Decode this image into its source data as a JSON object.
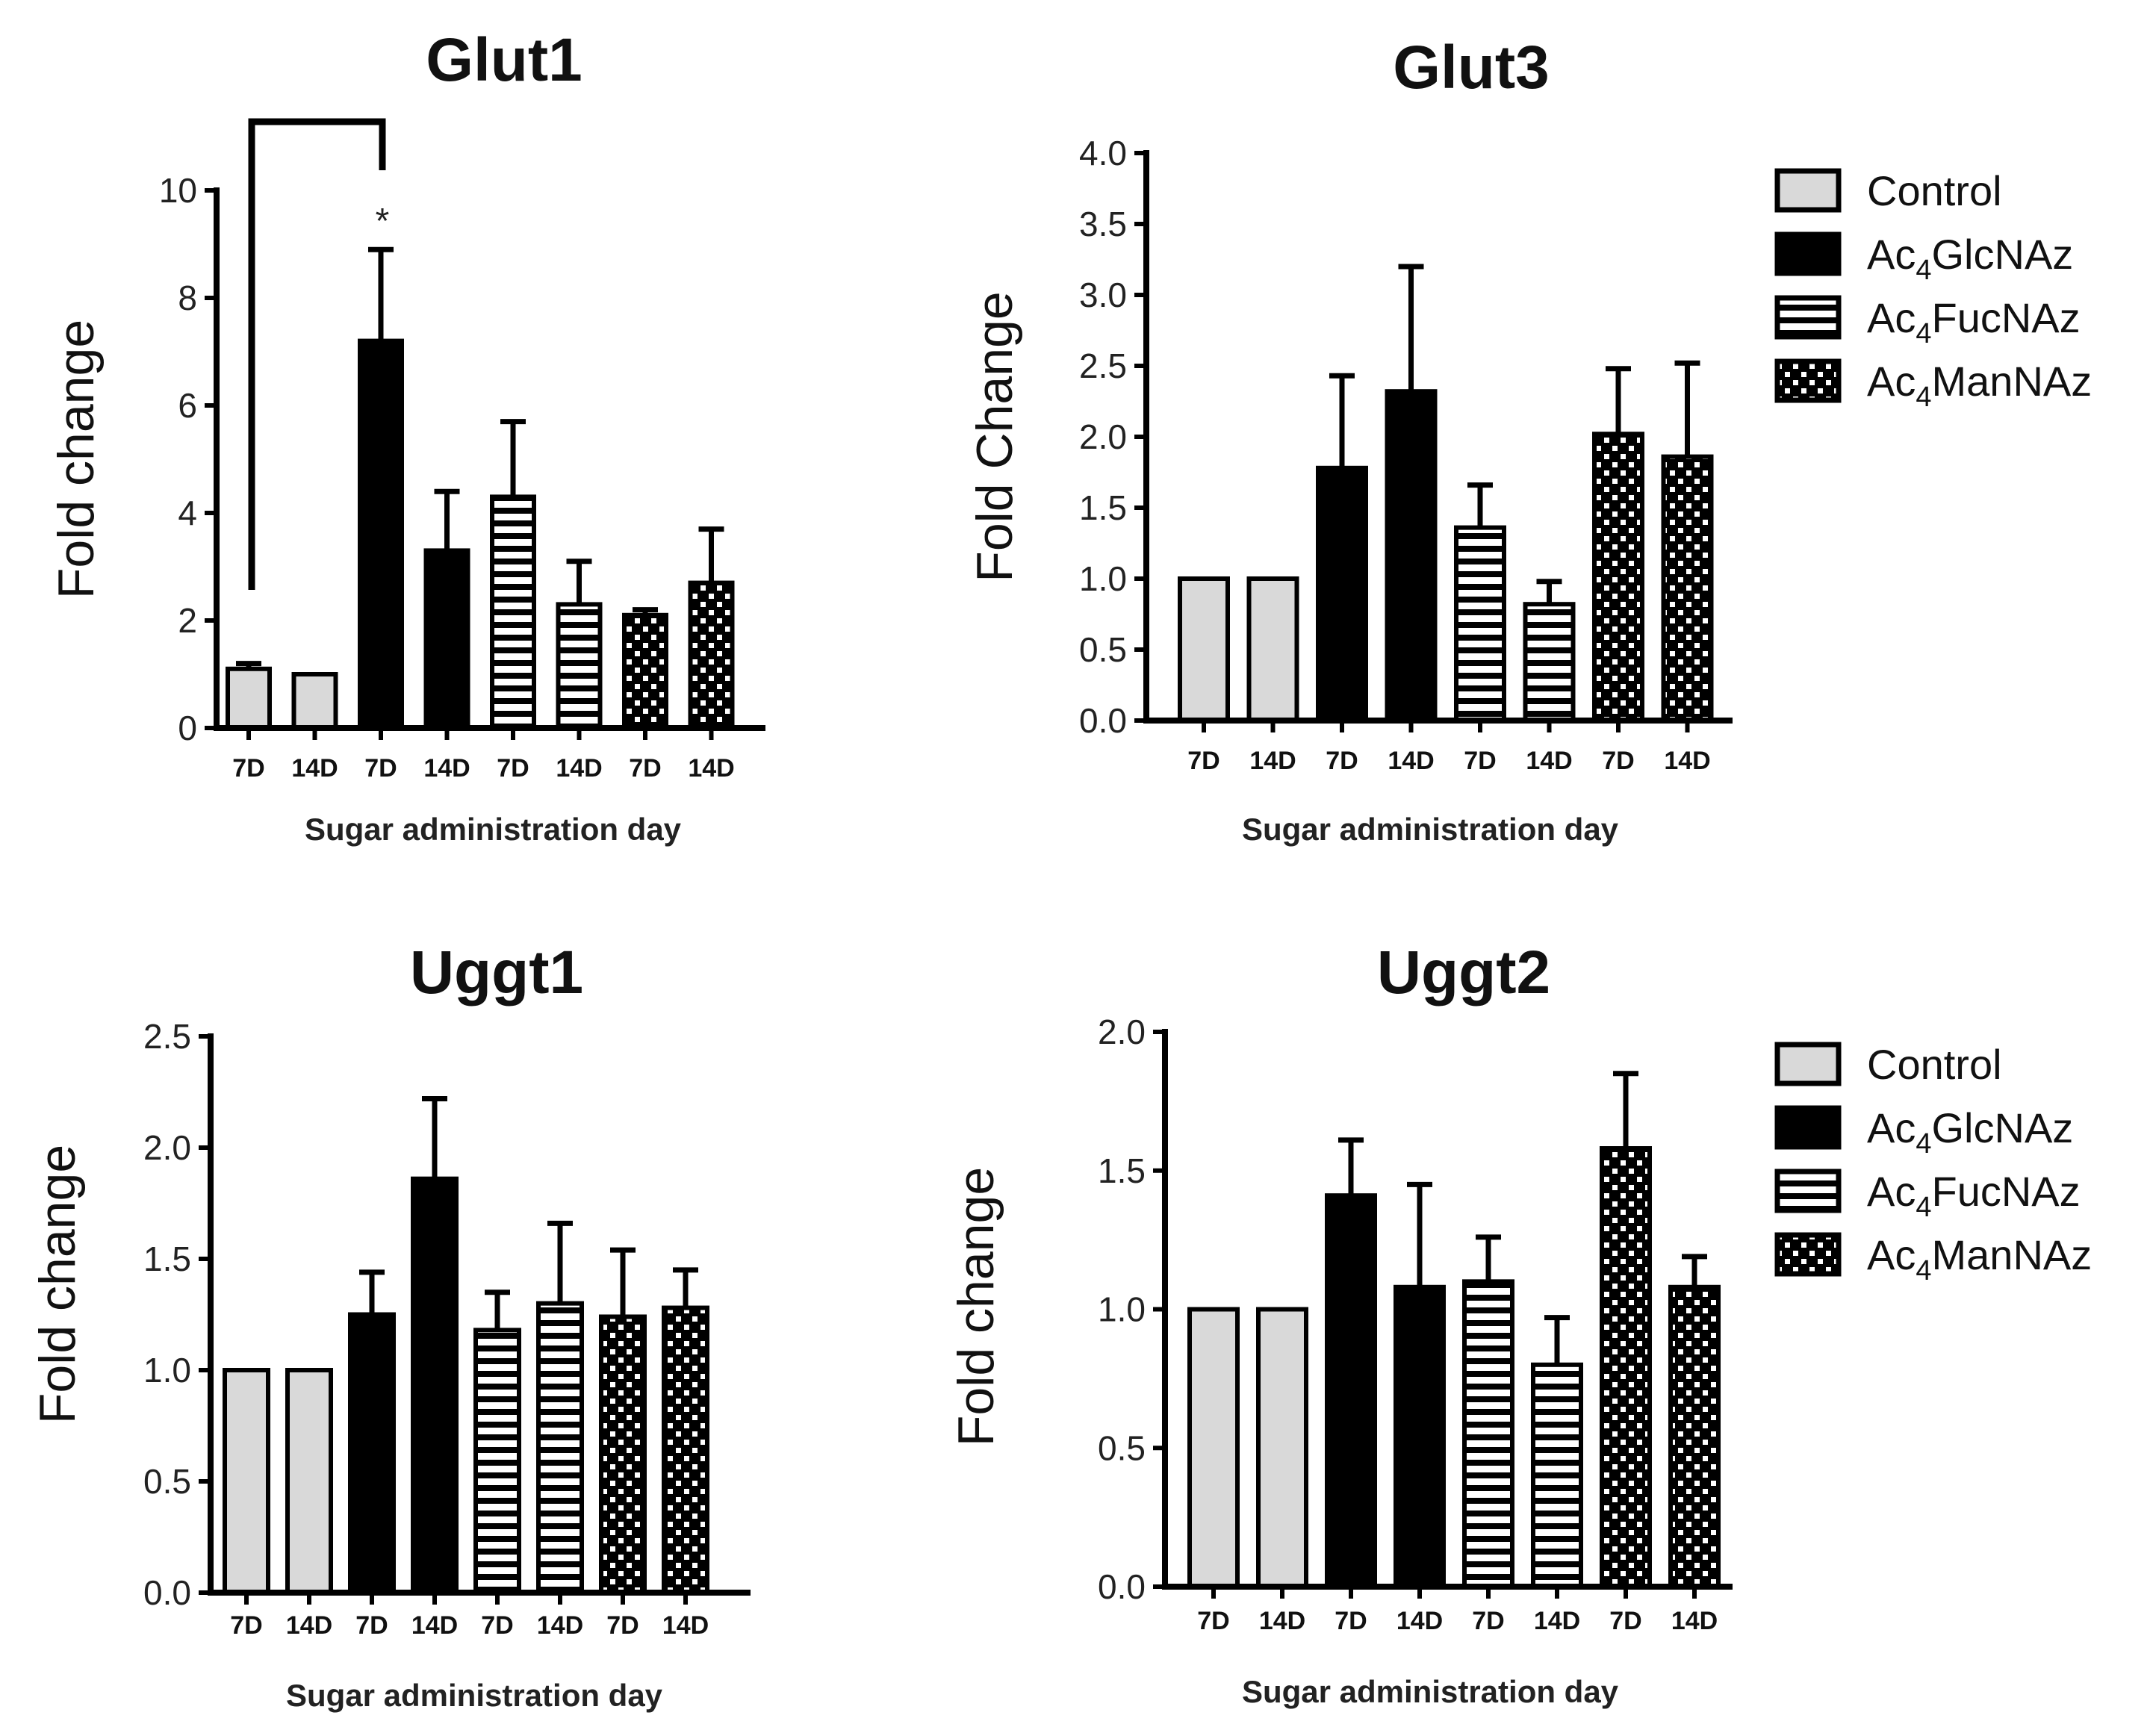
{
  "chart_data": [
    {
      "type": "bar",
      "title": "Glut1",
      "ylabel": "Fold change",
      "xlabel": "Sugar administration day",
      "ylim": [
        0,
        10
      ],
      "yticks": [
        "0",
        "2",
        "4",
        "6",
        "8",
        "10"
      ],
      "categories": [
        "7D",
        "14D",
        "7D",
        "14D",
        "7D",
        "14D",
        "7D",
        "14D"
      ],
      "series_index": [
        0,
        0,
        1,
        1,
        2,
        2,
        3,
        3
      ],
      "values": [
        1.1,
        1.0,
        7.2,
        3.3,
        4.3,
        2.3,
        2.1,
        2.7
      ],
      "errors": [
        0.1,
        0.0,
        1.7,
        1.1,
        1.4,
        0.8,
        0.1,
        1.0
      ],
      "annotation": "*",
      "significance_bracket": {
        "from_index": 0,
        "to_index": 2
      }
    },
    {
      "type": "bar",
      "title": "Glut3",
      "ylabel": "Fold Change",
      "xlabel": "Sugar administration day",
      "ylim": [
        0,
        4.0
      ],
      "yticks": [
        "0.0",
        "0.5",
        "1.0",
        "1.5",
        "2.0",
        "2.5",
        "3.0",
        "3.5",
        "4.0"
      ],
      "categories": [
        "7D",
        "14D",
        "7D",
        "14D",
        "7D",
        "14D",
        "7D",
        "14D"
      ],
      "series_index": [
        0,
        0,
        1,
        1,
        2,
        2,
        3,
        3
      ],
      "values": [
        1.0,
        1.0,
        1.78,
        2.32,
        1.36,
        0.82,
        2.02,
        1.86
      ],
      "errors": [
        0.0,
        0.0,
        0.65,
        0.88,
        0.3,
        0.16,
        0.46,
        0.66
      ]
    },
    {
      "type": "bar",
      "title": "Uggt1",
      "ylabel": "Fold change",
      "xlabel": "Sugar administration day",
      "ylim": [
        0,
        2.5
      ],
      "yticks": [
        "0.0",
        "0.5",
        "1.0",
        "1.5",
        "2.0",
        "2.5"
      ],
      "categories": [
        "7D",
        "14D",
        "7D",
        "14D",
        "7D",
        "14D",
        "7D",
        "14D"
      ],
      "series_index": [
        0,
        0,
        1,
        1,
        2,
        2,
        3,
        3
      ],
      "values": [
        1.0,
        1.0,
        1.25,
        1.86,
        1.18,
        1.3,
        1.24,
        1.28
      ],
      "errors": [
        0.0,
        0.0,
        0.19,
        0.36,
        0.17,
        0.36,
        0.3,
        0.17
      ]
    },
    {
      "type": "bar",
      "title": "Uggt2",
      "ylabel": "Fold change",
      "xlabel": "Sugar administration day",
      "ylim": [
        0,
        2.0
      ],
      "yticks": [
        "0.0",
        "0.5",
        "1.0",
        "1.5",
        "2.0"
      ],
      "categories": [
        "7D",
        "14D",
        "7D",
        "14D",
        "7D",
        "14D",
        "7D",
        "14D"
      ],
      "series_index": [
        0,
        0,
        1,
        1,
        2,
        2,
        3,
        3
      ],
      "values": [
        1.0,
        1.0,
        1.41,
        1.08,
        1.1,
        0.8,
        1.58,
        1.08
      ],
      "errors": [
        0.0,
        0.0,
        0.2,
        0.37,
        0.16,
        0.17,
        0.27,
        0.11
      ]
    }
  ],
  "legend": {
    "entries": [
      {
        "name": "Control",
        "prefix": "",
        "sub": "",
        "suffix": "",
        "pattern": "light-gray"
      },
      {
        "name": "Ac4GlcNAz",
        "prefix": "Ac",
        "sub": "4",
        "suffix": "GlcNAz",
        "pattern": "black"
      },
      {
        "name": "Ac4FucNAz",
        "prefix": "Ac",
        "sub": "4",
        "suffix": "FucNAz",
        "pattern": "horizontal-stripes"
      },
      {
        "name": "Ac4ManNAz",
        "prefix": "Ac",
        "sub": "4",
        "suffix": "ManNAz",
        "pattern": "checkered"
      }
    ]
  },
  "colors": {
    "control_fill": "#d9d9d9",
    "glcnaz_fill": "#000000",
    "stroke": "#000000",
    "pattern_bg": "#ffffff"
  }
}
